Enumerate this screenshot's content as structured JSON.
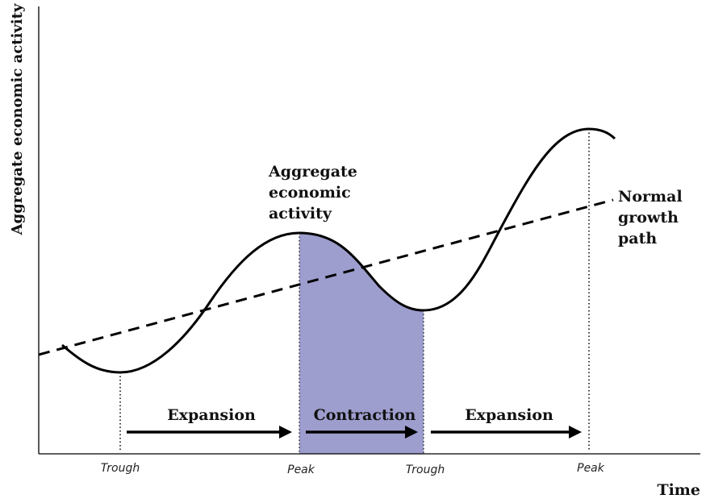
{
  "diagram": {
    "y_axis_label": "Aggregate economic activity",
    "x_axis_label": "Time",
    "curve_label_lines": [
      "Aggregate",
      "economic",
      "activity"
    ],
    "trend_label_lines": [
      "Normal",
      "growth",
      "path"
    ],
    "phases": [
      {
        "label": "Expansion"
      },
      {
        "label": "Contraction"
      },
      {
        "label": "Expansion"
      }
    ],
    "turning_points": [
      {
        "label": "Trough"
      },
      {
        "label": "Peak"
      },
      {
        "label": "Trough"
      },
      {
        "label": "Peak"
      }
    ],
    "colors": {
      "contraction_fill": "#9d9dce",
      "line": "#000000",
      "text": "#111111"
    }
  }
}
